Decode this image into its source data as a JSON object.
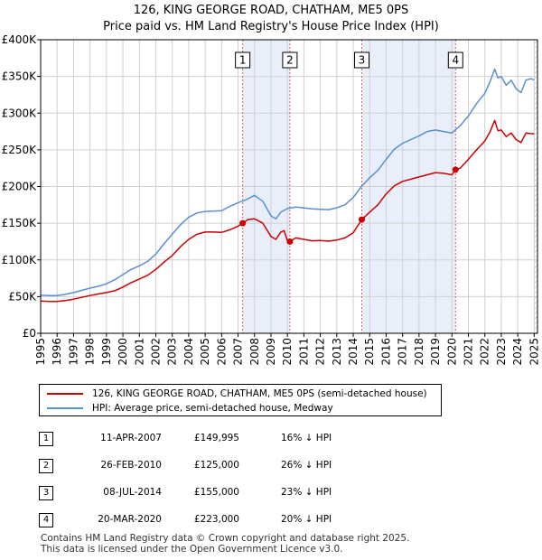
{
  "chart_data": {
    "type": "line",
    "title": "126, KING GEORGE ROAD, CHATHAM, ME5 0PS",
    "subtitle": "Price paid vs. HM Land Registry's House Price Index (HPI)",
    "xlabel": "",
    "ylabel": "",
    "xlim": [
      1995,
      2025.2
    ],
    "ylim": [
      0,
      400000
    ],
    "x_ticks": [
      1995,
      1996,
      1997,
      1998,
      1999,
      2000,
      2001,
      2002,
      2003,
      2004,
      2005,
      2006,
      2007,
      2008,
      2009,
      2010,
      2011,
      2012,
      2013,
      2014,
      2015,
      2016,
      2017,
      2018,
      2019,
      2020,
      2021,
      2022,
      2023,
      2024,
      2025
    ],
    "x_tick_labels": [
      "1995",
      "1996",
      "1997",
      "1998",
      "1999",
      "2000",
      "2001",
      "2002",
      "2003",
      "2004",
      "2005",
      "2006",
      "2007",
      "2008",
      "2009",
      "2010",
      "2011",
      "2012",
      "2013",
      "2014",
      "2015",
      "2016",
      "2017",
      "2018",
      "2019",
      "2020",
      "2021",
      "2022",
      "2023",
      "2024",
      "2025"
    ],
    "y_ticks": [
      0,
      50000,
      100000,
      150000,
      200000,
      250000,
      300000,
      350000,
      400000
    ],
    "y_tick_labels": [
      "£0",
      "£50K",
      "£100K",
      "£150K",
      "£200K",
      "£250K",
      "£300K",
      "£350K",
      "£400K"
    ],
    "grid": true,
    "legend_position": "below",
    "series": [
      {
        "name": "126, KING GEORGE ROAD, CHATHAM, ME5 0PS (semi-detached house)",
        "color": "#cc0000",
        "points": [
          [
            1995.0,
            44000
          ],
          [
            1995.5,
            43500
          ],
          [
            1996.0,
            43500
          ],
          [
            1996.5,
            44500
          ],
          [
            1997.0,
            46500
          ],
          [
            1997.5,
            49000
          ],
          [
            1998.0,
            51500
          ],
          [
            1998.5,
            53500
          ],
          [
            1999.0,
            55500
          ],
          [
            1999.5,
            58000
          ],
          [
            2000.0,
            63000
          ],
          [
            2000.5,
            69000
          ],
          [
            2001.0,
            74000
          ],
          [
            2001.5,
            79000
          ],
          [
            2002.0,
            87000
          ],
          [
            2002.5,
            97000
          ],
          [
            2003.0,
            106000
          ],
          [
            2003.5,
            118000
          ],
          [
            2004.0,
            128000
          ],
          [
            2004.5,
            135000
          ],
          [
            2005.0,
            138000
          ],
          [
            2005.5,
            138000
          ],
          [
            2006.0,
            137500
          ],
          [
            2006.5,
            141000
          ],
          [
            2007.0,
            146000
          ],
          [
            2007.28,
            149995
          ],
          [
            2007.6,
            155000
          ],
          [
            2008.0,
            156000
          ],
          [
            2008.5,
            150000
          ],
          [
            2009.0,
            132000
          ],
          [
            2009.3,
            128000
          ],
          [
            2009.6,
            138000
          ],
          [
            2009.8,
            140000
          ],
          [
            2010.0,
            126000
          ],
          [
            2010.15,
            125000
          ],
          [
            2010.5,
            130000
          ],
          [
            2011.0,
            128000
          ],
          [
            2011.5,
            126000
          ],
          [
            2012.0,
            126500
          ],
          [
            2012.5,
            125500
          ],
          [
            2013.0,
            127000
          ],
          [
            2013.5,
            130000
          ],
          [
            2014.0,
            137000
          ],
          [
            2014.52,
            155000
          ],
          [
            2015.0,
            165000
          ],
          [
            2015.5,
            175000
          ],
          [
            2016.0,
            190000
          ],
          [
            2016.5,
            201000
          ],
          [
            2017.0,
            207000
          ],
          [
            2017.5,
            210000
          ],
          [
            2018.0,
            213000
          ],
          [
            2018.5,
            216000
          ],
          [
            2019.0,
            219000
          ],
          [
            2019.5,
            218000
          ],
          [
            2020.0,
            216000
          ],
          [
            2020.22,
            223000
          ],
          [
            2020.5,
            225000
          ],
          [
            2021.0,
            237000
          ],
          [
            2021.5,
            250000
          ],
          [
            2022.0,
            262000
          ],
          [
            2022.3,
            274000
          ],
          [
            2022.6,
            290000
          ],
          [
            2022.8,
            276000
          ],
          [
            2023.0,
            277000
          ],
          [
            2023.3,
            268000
          ],
          [
            2023.6,
            273000
          ],
          [
            2023.9,
            264000
          ],
          [
            2024.2,
            260000
          ],
          [
            2024.5,
            273000
          ],
          [
            2024.8,
            272000
          ],
          [
            2025.0,
            272000
          ]
        ]
      },
      {
        "name": "HPI: Average price, semi-detached house, Medway",
        "color": "#5b8fd0",
        "points": [
          [
            1995.0,
            52000
          ],
          [
            1995.5,
            51500
          ],
          [
            1996.0,
            51500
          ],
          [
            1996.5,
            53000
          ],
          [
            1997.0,
            55500
          ],
          [
            1997.5,
            58500
          ],
          [
            1998.0,
            61500
          ],
          [
            1998.5,
            64000
          ],
          [
            1999.0,
            67500
          ],
          [
            1999.5,
            73000
          ],
          [
            2000.0,
            80000
          ],
          [
            2000.5,
            87000
          ],
          [
            2001.0,
            92000
          ],
          [
            2001.5,
            98000
          ],
          [
            2002.0,
            108000
          ],
          [
            2002.5,
            122000
          ],
          [
            2003.0,
            135000
          ],
          [
            2003.5,
            148000
          ],
          [
            2004.0,
            158000
          ],
          [
            2004.5,
            164000
          ],
          [
            2005.0,
            166000
          ],
          [
            2005.5,
            166500
          ],
          [
            2006.0,
            167000
          ],
          [
            2006.5,
            173000
          ],
          [
            2007.0,
            178000
          ],
          [
            2007.5,
            182000
          ],
          [
            2008.0,
            188000
          ],
          [
            2008.5,
            180000
          ],
          [
            2009.0,
            160000
          ],
          [
            2009.3,
            156000
          ],
          [
            2009.6,
            165000
          ],
          [
            2010.0,
            170000
          ],
          [
            2010.5,
            172000
          ],
          [
            2011.0,
            171000
          ],
          [
            2011.5,
            169500
          ],
          [
            2012.0,
            169000
          ],
          [
            2012.5,
            168500
          ],
          [
            2013.0,
            171000
          ],
          [
            2013.5,
            175000
          ],
          [
            2014.0,
            185000
          ],
          [
            2014.5,
            200000
          ],
          [
            2015.0,
            212000
          ],
          [
            2015.5,
            222000
          ],
          [
            2016.0,
            237000
          ],
          [
            2016.5,
            251000
          ],
          [
            2017.0,
            259000
          ],
          [
            2017.5,
            264000
          ],
          [
            2018.0,
            269000
          ],
          [
            2018.5,
            275000
          ],
          [
            2019.0,
            277000
          ],
          [
            2019.5,
            275000
          ],
          [
            2020.0,
            273000
          ],
          [
            2020.5,
            283000
          ],
          [
            2021.0,
            296000
          ],
          [
            2021.5,
            313000
          ],
          [
            2022.0,
            327000
          ],
          [
            2022.3,
            342000
          ],
          [
            2022.6,
            360000
          ],
          [
            2022.8,
            348000
          ],
          [
            2023.0,
            350000
          ],
          [
            2023.3,
            338000
          ],
          [
            2023.6,
            345000
          ],
          [
            2023.9,
            333000
          ],
          [
            2024.2,
            328000
          ],
          [
            2024.5,
            345000
          ],
          [
            2024.8,
            347000
          ],
          [
            2025.0,
            345000
          ]
        ]
      }
    ],
    "sales": [
      {
        "label": "1",
        "x": 2007.28,
        "price": 149995
      },
      {
        "label": "2",
        "x": 2010.15,
        "price": 125000
      },
      {
        "label": "3",
        "x": 2014.52,
        "price": 155000
      },
      {
        "label": "4",
        "x": 2020.22,
        "price": 223000
      }
    ],
    "shaded_periods": [
      [
        2007.28,
        2010.15
      ],
      [
        2014.52,
        2020.22
      ]
    ],
    "hatched_after": 2025.0
  },
  "legend": [
    {
      "label": "126, KING GEORGE ROAD, CHATHAM, ME5 0PS (semi-detached house)",
      "color": "#cc0000"
    },
    {
      "label": "HPI: Average price, semi-detached house, Medway",
      "color": "#5b8fd0"
    }
  ],
  "transactions": [
    {
      "num": "1",
      "date": "11-APR-2007",
      "price": "£149,995",
      "hpi": "16% ↓ HPI"
    },
    {
      "num": "2",
      "date": "26-FEB-2010",
      "price": "£125,000",
      "hpi": "26% ↓ HPI"
    },
    {
      "num": "3",
      "date": "08-JUL-2014",
      "price": "£155,000",
      "hpi": "23% ↓ HPI"
    },
    {
      "num": "4",
      "date": "20-MAR-2020",
      "price": "£223,000",
      "hpi": "20% ↓ HPI"
    }
  ],
  "footer": {
    "line1": "Contains HM Land Registry data © Crown copyright and database right 2025.",
    "line2": "This data is licensed under the Open Government Licence v3.0."
  }
}
